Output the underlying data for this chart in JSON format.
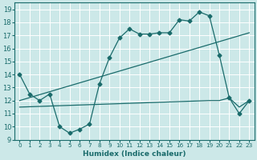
{
  "xlabel": "Humidex (Indice chaleur)",
  "ylabel": "",
  "xlim": [
    -0.5,
    23.5
  ],
  "ylim": [
    9,
    19.5
  ],
  "yticks": [
    9,
    10,
    11,
    12,
    13,
    14,
    15,
    16,
    17,
    18,
    19
  ],
  "xticks": [
    0,
    1,
    2,
    3,
    4,
    5,
    6,
    7,
    8,
    9,
    10,
    11,
    12,
    13,
    14,
    15,
    16,
    17,
    18,
    19,
    20,
    21,
    22,
    23
  ],
  "bg_color": "#cce8e8",
  "line_color": "#1a6b6b",
  "grid_color": "#b0d8d8",
  "series": {
    "line1_wiggly": {
      "x": [
        0,
        1,
        2,
        3,
        4,
        5,
        6,
        7,
        8,
        9,
        10,
        11,
        12,
        13,
        14,
        15,
        16,
        17,
        18,
        19,
        20,
        21,
        22,
        23
      ],
      "y": [
        14.0,
        12.5,
        12.0,
        12.5,
        10.0,
        9.5,
        9.8,
        10.2,
        13.3,
        15.3,
        16.8,
        17.5,
        17.1,
        17.1,
        17.2,
        17.2,
        18.2,
        18.1,
        18.8,
        18.5,
        15.5,
        12.2,
        11.0,
        12.0
      ],
      "marker": "D",
      "markersize": 2.5
    },
    "line2_diagonal": {
      "x": [
        0,
        23
      ],
      "y": [
        12.0,
        17.2
      ],
      "marker": null
    },
    "line3_flat": {
      "x": [
        0,
        19,
        20,
        21,
        22,
        23
      ],
      "y": [
        11.5,
        12.0,
        12.0,
        12.2,
        11.5,
        12.0
      ],
      "marker": null
    }
  }
}
